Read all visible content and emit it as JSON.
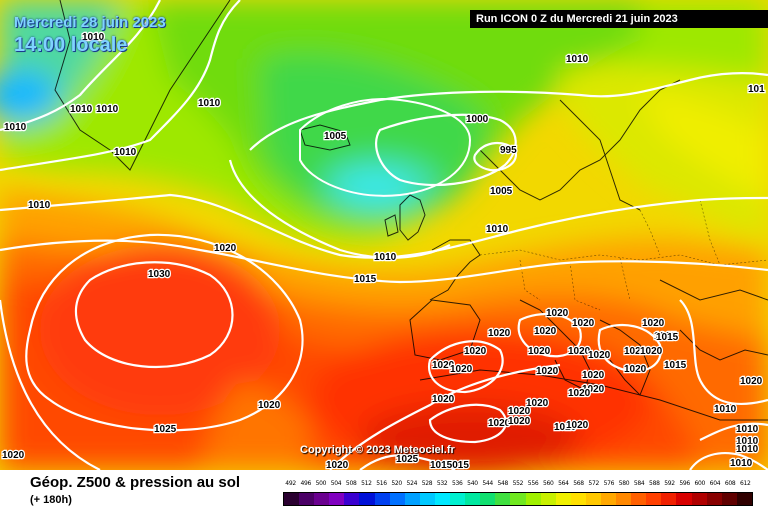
{
  "header": {
    "date": "Mercredi 28 juin 2023",
    "time": "14:00 locale",
    "run": "Run ICON 0 Z du Mercredi 21 juin 2023"
  },
  "copyright": "Copyright © 2023 Meteociel.fr",
  "footer": {
    "title": "Géop. Z500 & pression au sol",
    "subtitle": "(+ 180h)"
  },
  "scale": {
    "labels": [
      "492",
      "496",
      "500",
      "504",
      "508",
      "512",
      "516",
      "520",
      "524",
      "528",
      "532",
      "536",
      "540",
      "544",
      "548",
      "552",
      "556",
      "560",
      "564",
      "568",
      "572",
      "576",
      "580",
      "584",
      "588",
      "592",
      "596",
      "600",
      "604",
      "608",
      "612"
    ],
    "colors": [
      "#2a0030",
      "#4b0066",
      "#6a008f",
      "#8000c0",
      "#3a00d0",
      "#0010d8",
      "#0040f0",
      "#0070ff",
      "#00a0ff",
      "#00c8ff",
      "#00e8ff",
      "#00f0d0",
      "#00e8a0",
      "#10e070",
      "#40e040",
      "#70e820",
      "#a0f000",
      "#c8f000",
      "#f0f000",
      "#ffe000",
      "#ffc800",
      "#ffa800",
      "#ff8800",
      "#ff6000",
      "#ff4000",
      "#f02000",
      "#d80000",
      "#b00000",
      "#880000",
      "#600000",
      "#300000"
    ]
  },
  "isobar_labels": [
    {
      "text": "1010"
    },
    {
      "text": "1010"
    },
    {
      "text": "1010"
    },
    {
      "text": "1010"
    },
    {
      "text": "1010"
    },
    {
      "text": "1010"
    },
    {
      "text": "1010"
    },
    {
      "text": "1010"
    },
    {
      "text": "1005"
    },
    {
      "text": "1000"
    },
    {
      "text": "995"
    },
    {
      "text": "1005"
    },
    {
      "text": "1010"
    },
    {
      "text": "1010"
    },
    {
      "text": "1020"
    },
    {
      "text": "1030"
    },
    {
      "text": "1015"
    },
    {
      "text": "1020"
    },
    {
      "text": "1020"
    },
    {
      "text": "1020"
    },
    {
      "text": "1020"
    },
    {
      "text": "1020"
    },
    {
      "text": "1020"
    },
    {
      "text": "1020"
    },
    {
      "text": "1015"
    },
    {
      "text": "1020"
    },
    {
      "text": "1020"
    },
    {
      "text": "1020"
    },
    {
      "text": "1020"
    },
    {
      "text": "1020"
    },
    {
      "text": "1020"
    },
    {
      "text": "1015"
    },
    {
      "text": "1020"
    },
    {
      "text": "1020"
    },
    {
      "text": "1020"
    },
    {
      "text": "1020"
    },
    {
      "text": "1020"
    },
    {
      "text": "1020"
    },
    {
      "text": "1020"
    },
    {
      "text": "1020"
    },
    {
      "text": "1020"
    },
    {
      "text": "1025"
    },
    {
      "text": "1020"
    },
    {
      "text": "1020"
    },
    {
      "text": "1025"
    },
    {
      "text": "1015015"
    },
    {
      "text": "1020"
    },
    {
      "text": "1010"
    },
    {
      "text": "1010"
    },
    {
      "text": "1010"
    },
    {
      "text": "1010"
    },
    {
      "text": "1010"
    },
    {
      "text": "1015"
    },
    {
      "text": "101"
    },
    {
      "text": "1020"
    },
    {
      "text": "1020"
    },
    {
      "text": "1020"
    },
    {
      "text": "1020"
    }
  ]
}
